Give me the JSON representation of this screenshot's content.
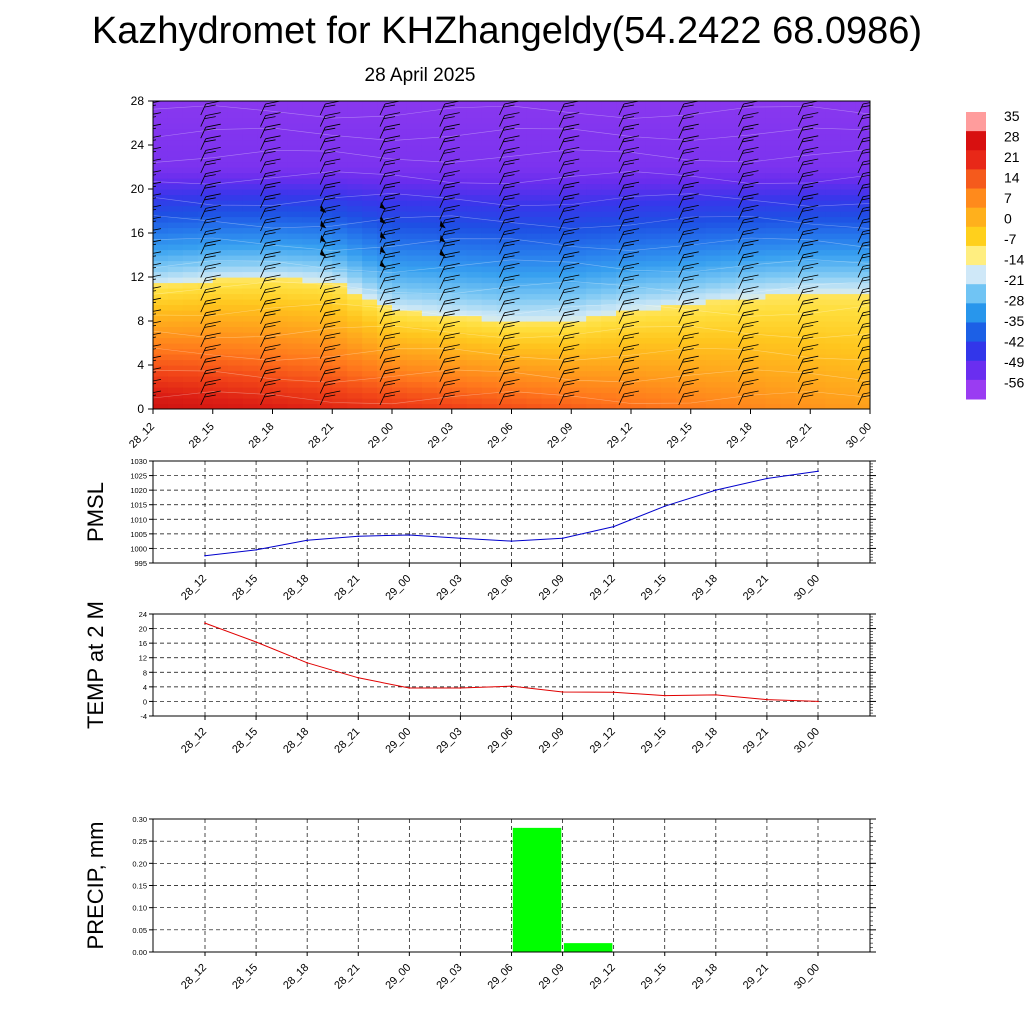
{
  "header": {
    "title": "Kazhydromet for KHZhangeldy(54.2422 68.0986)",
    "date": "28 April 2025"
  },
  "colors": {
    "pmsl_line": "#0000cc",
    "temp_line": "#e00000",
    "precip_bar": "#00ff00",
    "grid": "#000000"
  },
  "chart_data": [
    {
      "type": "heatmap",
      "name": "cross-section",
      "x_ticks": [
        "28_12",
        "28_15",
        "28_18",
        "28_21",
        "29_00",
        "29_03",
        "29_06",
        "29_09",
        "29_12",
        "29_15",
        "29_18",
        "29_21",
        "30_00"
      ],
      "y_ticks": [
        "0",
        "4",
        "8",
        "12",
        "16",
        "20",
        "24",
        "28"
      ],
      "ylim": [
        0,
        28
      ],
      "colorbar_labels": [
        "35",
        "28",
        "21",
        "14",
        "7",
        "0",
        "-7",
        "-14",
        "-21",
        "-28",
        "-35",
        "-42",
        "-49",
        "-56"
      ],
      "colorbar_range": [
        -60,
        36
      ],
      "colorbar_colors": [
        "#ff9c9c",
        "#d81010",
        "#e82818",
        "#f55a1c",
        "#ff8a1c",
        "#ffb01c",
        "#ffd01c",
        "#ffee80",
        "#cfe8f8",
        "#70c4f4",
        "#2896ec",
        "#1c60e6",
        "#3236ea",
        "#6a2ef0",
        "#9a3cf2"
      ],
      "freezing_level": [
        {
          "x": "28_12",
          "h": 11.3
        },
        {
          "x": "28_15",
          "h": 11.8
        },
        {
          "x": "28_18",
          "h": 11.9
        },
        {
          "x": "28_21",
          "h": 11.6
        },
        {
          "x": "29_00",
          "h": 9.0
        },
        {
          "x": "29_03",
          "h": 8.5
        },
        {
          "x": "29_06",
          "h": 8.0
        },
        {
          "x": "29_09",
          "h": 8.1
        },
        {
          "x": "29_12",
          "h": 9.0
        },
        {
          "x": "29_15",
          "h": 9.5
        },
        {
          "x": "29_18",
          "h": 10.2
        },
        {
          "x": "29_21",
          "h": 10.6
        },
        {
          "x": "30_00",
          "h": 10.6
        }
      ],
      "wind_barbs": "present at every time, 0-28 levels"
    },
    {
      "type": "line",
      "ylabel": "PMSL",
      "categories": [
        "28_12",
        "28_15",
        "28_18",
        "28_21",
        "29_00",
        "29_03",
        "29_06",
        "29_09",
        "29_12",
        "29_15",
        "29_18",
        "29_21",
        "30_00"
      ],
      "values": [
        997.5,
        999.5,
        1002.8,
        1004.2,
        1004.6,
        1003.5,
        1002.5,
        1003.5,
        1007.5,
        1014.5,
        1020.0,
        1024.0,
        1026.5
      ],
      "y_ticks": [
        "995",
        "1000",
        "1005",
        "1010",
        "1015",
        "1020",
        "1025",
        "1030"
      ],
      "ylim": [
        995,
        1030
      ],
      "grid": true
    },
    {
      "type": "line",
      "ylabel": "TEMP at 2 M",
      "categories": [
        "28_12",
        "28_15",
        "28_18",
        "28_21",
        "29_00",
        "29_03",
        "29_06",
        "29_09",
        "29_12",
        "29_15",
        "29_18",
        "29_21",
        "30_00"
      ],
      "values": [
        21.5,
        16.3,
        10.6,
        6.5,
        3.7,
        3.7,
        4.2,
        2.6,
        2.5,
        1.6,
        1.8,
        0.5,
        0.0
      ],
      "y_ticks": [
        "-4",
        "0",
        "4",
        "8",
        "12",
        "16",
        "20",
        "24"
      ],
      "ylim": [
        -4,
        24
      ],
      "grid": true
    },
    {
      "type": "bar",
      "ylabel": "PRECIP, mm",
      "categories": [
        "28_12",
        "28_15",
        "28_18",
        "28_21",
        "29_00",
        "29_03",
        "29_06",
        "29_09",
        "29_12",
        "29_15",
        "29_18",
        "29_21",
        "30_00"
      ],
      "values": [
        0,
        0,
        0,
        0,
        0,
        0,
        0,
        0.28,
        0.02,
        0,
        0,
        0,
        0
      ],
      "y_ticks": [
        "0.00",
        "0.05",
        "0.10",
        "0.15",
        "0.20",
        "0.25",
        "0.30"
      ],
      "ylim": [
        0,
        0.3
      ],
      "grid": true
    }
  ]
}
